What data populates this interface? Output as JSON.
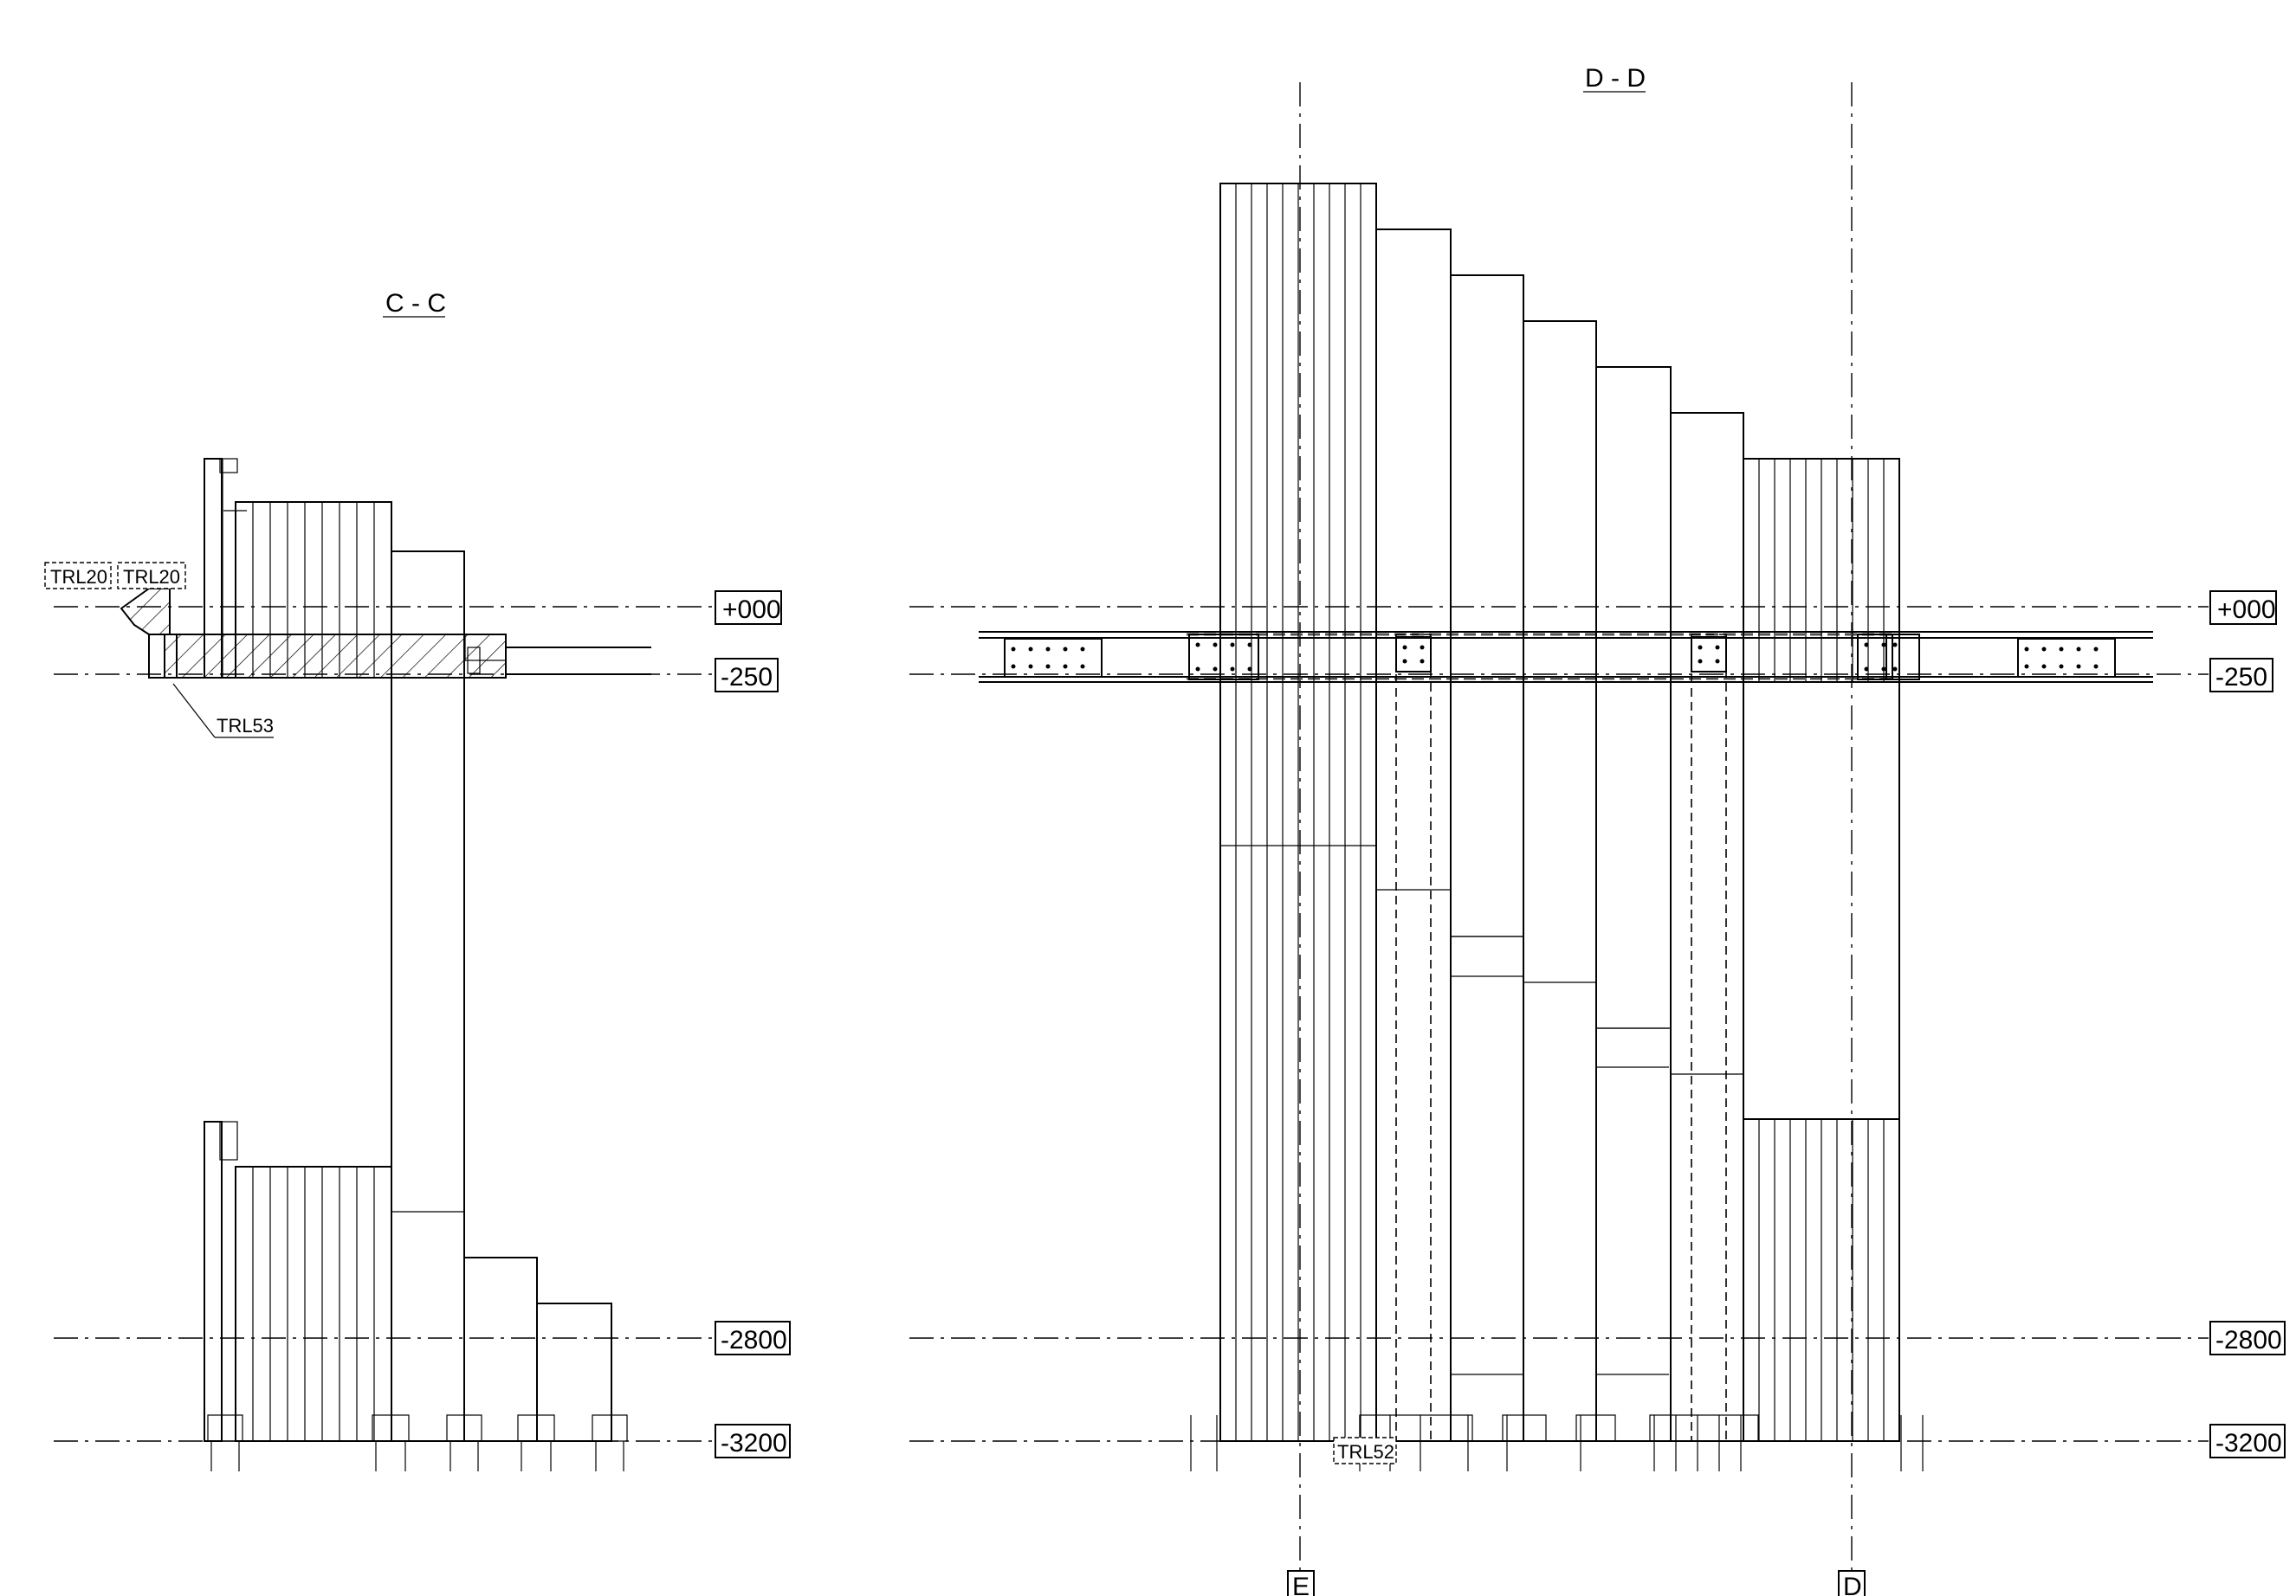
{
  "sections": {
    "cc": {
      "title": "C - C"
    },
    "dd": {
      "title": "D - D"
    }
  },
  "levels": {
    "l0": "+000",
    "l1": "-250",
    "l2": "-2800",
    "l3": "-3200"
  },
  "tags": {
    "trl20_a": "TRL20",
    "trl20_b": "TRL20",
    "trl53": "TRL53",
    "trl52": "TRL52"
  },
  "grid": {
    "e": "E",
    "d": "D"
  }
}
